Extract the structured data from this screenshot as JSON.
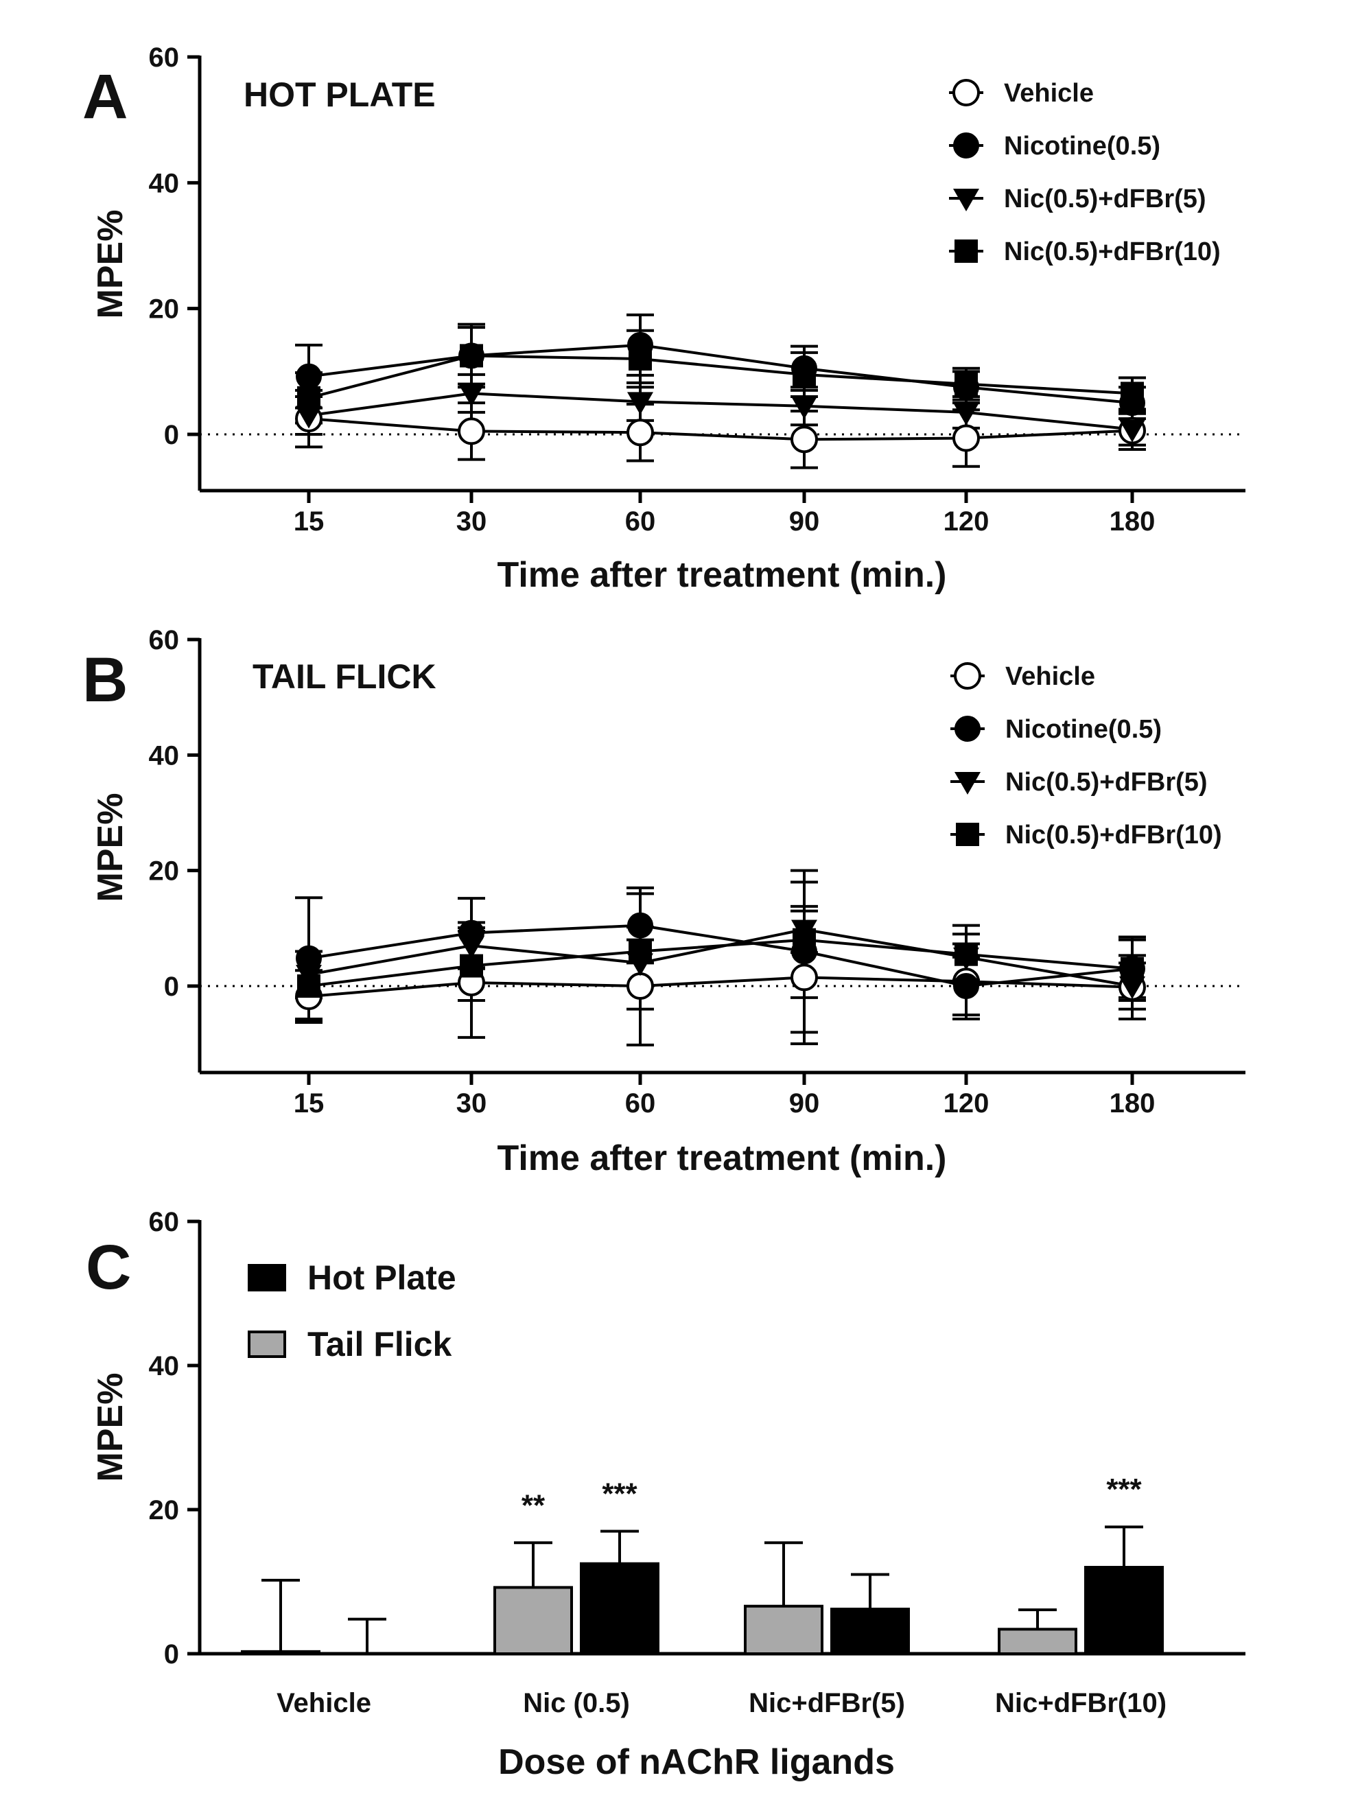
{
  "chart_data": [
    {
      "panel": "A",
      "type": "line",
      "title": "HOT PLATE",
      "xlabel": "Time after treatment (min.)",
      "ylabel": "MPE%",
      "categories": [
        "15",
        "30",
        "60",
        "90",
        "120",
        "180"
      ],
      "ylim": [
        -9,
        60
      ],
      "yticks": [
        0,
        20,
        40,
        60
      ],
      "reference_line": 0,
      "series": [
        {
          "name": "Vehicle",
          "marker": "circle-open",
          "values": [
            2.5,
            0.5,
            0.3,
            -0.8,
            -0.6,
            0.6
          ],
          "err": [
            4.5,
            4.5,
            4.5,
            4.5,
            4.5,
            3.0
          ]
        },
        {
          "name": "Nicotine(0.5)",
          "marker": "circle-filled",
          "values": [
            9.2,
            12.5,
            14.2,
            10.5,
            7.5,
            5.0
          ],
          "err": [
            5.0,
            5.0,
            4.8,
            3.5,
            2.5,
            2.5
          ]
        },
        {
          "name": "Nic(0.5)+dFBr(5)",
          "marker": "triangle-down",
          "values": [
            3.0,
            6.5,
            5.2,
            4.5,
            3.5,
            0.8
          ],
          "err": [
            3.0,
            3.0,
            3.0,
            3.0,
            2.5,
            2.5
          ]
        },
        {
          "name": "Nic(0.5)+dFBr(10)",
          "marker": "square",
          "values": [
            5.8,
            12.5,
            12.0,
            9.5,
            8.0,
            6.5
          ],
          "err": [
            4.0,
            4.5,
            4.5,
            3.5,
            2.5,
            2.5
          ]
        }
      ]
    },
    {
      "panel": "B",
      "type": "line",
      "title": "TAIL FLICK",
      "xlabel": "Time after treatment (min.)",
      "ylabel": "MPE%",
      "categories": [
        "15",
        "30",
        "60",
        "90",
        "120",
        "180"
      ],
      "ylim": [
        -15,
        60
      ],
      "yticks": [
        0,
        20,
        40,
        60
      ],
      "reference_line": 0,
      "series": [
        {
          "name": "Vehicle",
          "marker": "circle-open",
          "values": [
            -1.8,
            0.6,
            0.0,
            1.5,
            0.8,
            -0.2
          ],
          "err": [
            4.5,
            9.5,
            10.2,
            11.5,
            6.5,
            5.5
          ]
        },
        {
          "name": "Nicotine(0.5)",
          "marker": "circle-filled",
          "values": [
            4.8,
            9.2,
            10.5,
            6.0,
            0.0,
            3.0
          ],
          "err": [
            10.5,
            6.0,
            6.5,
            14.0,
            5.0,
            5.5
          ]
        },
        {
          "name": "Nic(0.5)+dFBr(5)",
          "marker": "triangle-down",
          "values": [
            2.0,
            7.0,
            4.0,
            9.8,
            5.0,
            0.0
          ],
          "err": [
            4.0,
            4.0,
            4.0,
            4.0,
            4.0,
            4.0
          ]
        },
        {
          "name": "Nic(0.5)+dFBr(10)",
          "marker": "square",
          "values": [
            0.0,
            3.5,
            6.0,
            8.0,
            5.5,
            3.0
          ],
          "err": [
            6.0,
            6.0,
            10.0,
            10.0,
            5.0,
            5.0
          ]
        }
      ]
    },
    {
      "panel": "C",
      "type": "bar",
      "xlabel": "Dose of nAChR ligands",
      "ylabel": "MPE%",
      "categories": [
        "Vehicle",
        "Nic (0.5)",
        "Nic+dFBr(5)",
        "Nic+dFBr(10)"
      ],
      "ylim": [
        0,
        60
      ],
      "yticks": [
        0,
        20,
        40,
        60
      ],
      "series": [
        {
          "name": "Tail Flick",
          "color": "#a9a9a9",
          "values": [
            0.3,
            9.2,
            6.6,
            3.4
          ],
          "err": [
            9.9,
            6.2,
            8.8,
            2.7
          ],
          "sig": [
            "",
            "**",
            "",
            ""
          ]
        },
        {
          "name": "Hot Plate",
          "color": "#000000",
          "values": [
            0.0,
            12.5,
            6.2,
            12.0
          ],
          "err": [
            4.8,
            4.5,
            4.8,
            5.6
          ],
          "sig": [
            "",
            "***",
            "",
            "***"
          ]
        }
      ],
      "legend": [
        "Hot Plate",
        "Tail Flick"
      ]
    }
  ]
}
